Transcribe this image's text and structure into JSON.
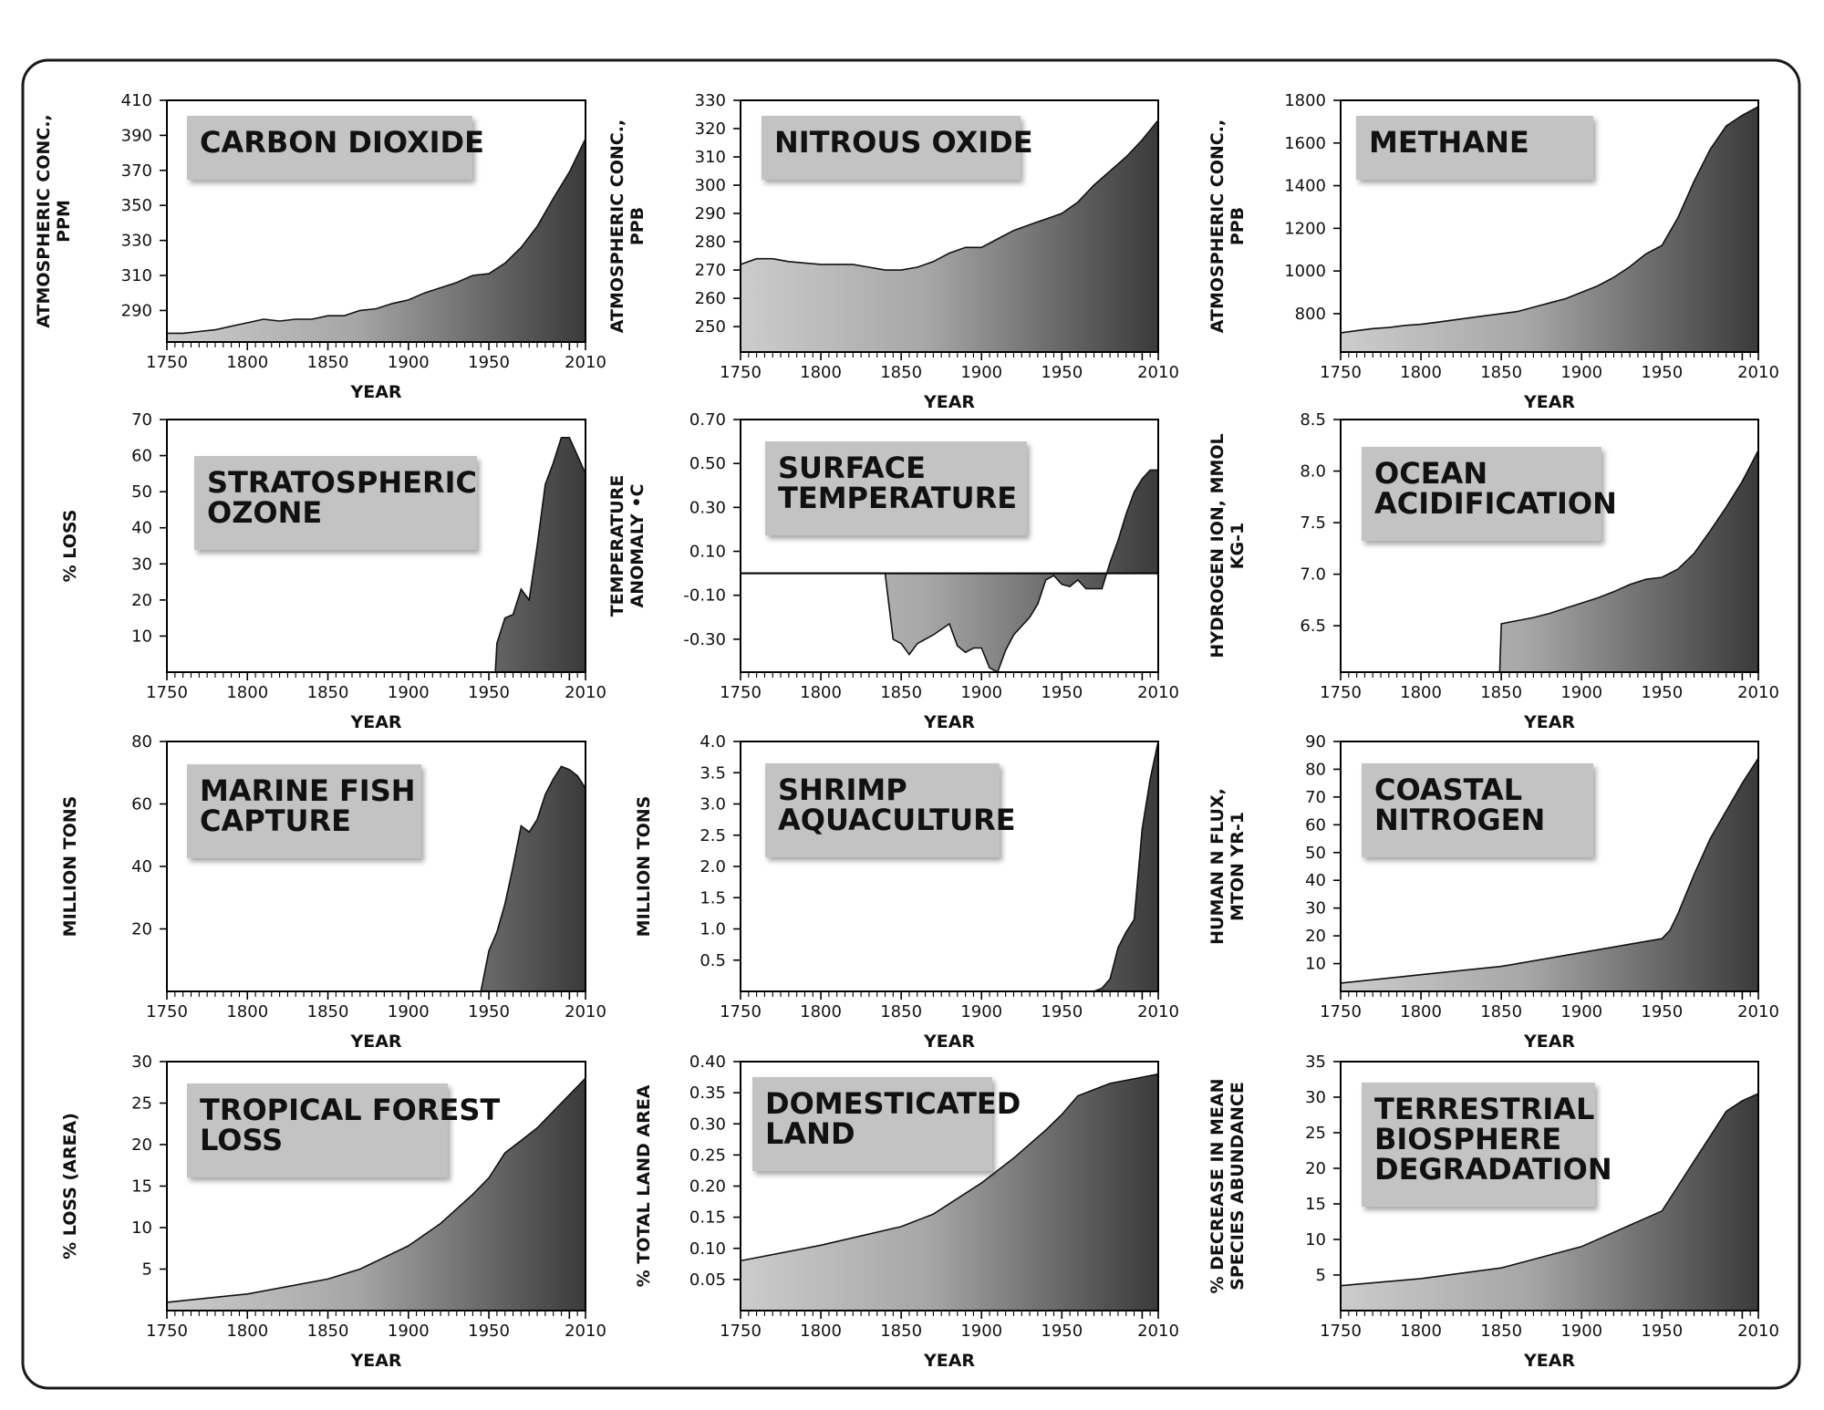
{
  "chart_data": [
    {
      "type": "area",
      "title_lines": [
        "CARBON DIOXIDE"
      ],
      "ylabel_lines": [
        "ATMOSPHERIC CONC.,",
        "PPM"
      ],
      "xlabel": "YEAR",
      "xlim": [
        1750,
        2010
      ],
      "ylim": [
        272,
        410
      ],
      "yticks": [
        290,
        310,
        330,
        350,
        370,
        390,
        410
      ],
      "xticks": [
        1750,
        1800,
        1850,
        1900,
        1950,
        2010
      ],
      "x": [
        1750,
        1760,
        1770,
        1780,
        1790,
        1800,
        1810,
        1820,
        1830,
        1840,
        1850,
        1860,
        1870,
        1880,
        1890,
        1900,
        1910,
        1920,
        1930,
        1940,
        1950,
        1960,
        1970,
        1980,
        1990,
        2000,
        2010
      ],
      "y": [
        277,
        277,
        278,
        279,
        281,
        283,
        285,
        284,
        285,
        285,
        287,
        287,
        290,
        291,
        294,
        296,
        300,
        303,
        306,
        310,
        311,
        317,
        326,
        338,
        354,
        369,
        388
      ]
    },
    {
      "type": "area",
      "title_lines": [
        "NITROUS OXIDE"
      ],
      "ylabel_lines": [
        "ATMOSPHERIC CONC.,",
        "PPB"
      ],
      "xlabel": "YEAR",
      "xlim": [
        1750,
        2010
      ],
      "ylim": [
        241,
        330
      ],
      "yticks": [
        250,
        260,
        270,
        280,
        290,
        300,
        310,
        320,
        330
      ],
      "xticks": [
        1750,
        1800,
        1850,
        1900,
        1950,
        2010
      ],
      "x": [
        1750,
        1760,
        1770,
        1780,
        1800,
        1820,
        1830,
        1840,
        1850,
        1860,
        1870,
        1880,
        1890,
        1900,
        1910,
        1920,
        1930,
        1940,
        1950,
        1960,
        1970,
        1980,
        1990,
        2000,
        2010
      ],
      "y": [
        272,
        274,
        274,
        273,
        272,
        272,
        271,
        270,
        270,
        271,
        273,
        276,
        278,
        278,
        281,
        284,
        286,
        288,
        290,
        294,
        300,
        305,
        310,
        316,
        323
      ]
    },
    {
      "type": "area",
      "title_lines": [
        "METHANE"
      ],
      "ylabel_lines": [
        "ATMOSPHERIC CONC.,",
        "PPB"
      ],
      "xlabel": "YEAR",
      "xlim": [
        1750,
        2010
      ],
      "ylim": [
        620,
        1800
      ],
      "yticks": [
        800,
        1000,
        1200,
        1400,
        1600,
        1800
      ],
      "xticks": [
        1750,
        1800,
        1850,
        1900,
        1950,
        2010
      ],
      "x": [
        1750,
        1760,
        1770,
        1780,
        1790,
        1800,
        1810,
        1820,
        1830,
        1840,
        1850,
        1860,
        1870,
        1880,
        1890,
        1900,
        1910,
        1920,
        1930,
        1940,
        1950,
        1960,
        1970,
        1980,
        1990,
        2000,
        2010
      ],
      "y": [
        710,
        720,
        730,
        735,
        745,
        750,
        760,
        770,
        780,
        790,
        800,
        810,
        830,
        850,
        870,
        900,
        930,
        970,
        1020,
        1080,
        1120,
        1250,
        1420,
        1570,
        1680,
        1730,
        1770
      ]
    },
    {
      "type": "area",
      "title_lines": [
        "STRATOSPHERIC",
        "OZONE"
      ],
      "ylabel_lines": [
        "% LOSS"
      ],
      "xlabel": "YEAR",
      "xlim": [
        1750,
        2010
      ],
      "ylim": [
        0,
        70
      ],
      "yticks": [
        10,
        20,
        30,
        40,
        50,
        60,
        70
      ],
      "xticks": [
        1750,
        1800,
        1850,
        1900,
        1950,
        2010
      ],
      "x": [
        1750,
        1954,
        1955,
        1960,
        1965,
        1970,
        1975,
        1980,
        1985,
        1990,
        1995,
        2000,
        2005,
        2010
      ],
      "y": [
        0,
        0,
        8,
        15,
        16,
        23,
        20,
        35,
        52,
        58,
        65,
        65,
        60,
        55
      ]
    },
    {
      "type": "area",
      "title_lines": [
        "SURFACE",
        "TEMPERATURE"
      ],
      "ylabel_lines": [
        "TEMPERATURE",
        "ANOMALY •C"
      ],
      "xlabel": "YEAR",
      "xlim": [
        1750,
        2010
      ],
      "ylim": [
        -0.45,
        0.7
      ],
      "yticks": [
        -0.3,
        -0.1,
        0.1,
        0.3,
        0.5,
        0.7
      ],
      "ytick_labels": [
        "-0.30",
        "-0.10",
        "0.10",
        "0.30",
        "0.50",
        "0.70"
      ],
      "xticks": [
        1750,
        1800,
        1850,
        1900,
        1950,
        2010
      ],
      "baseline": 0,
      "x": [
        1750,
        1840,
        1845,
        1850,
        1855,
        1860,
        1870,
        1880,
        1885,
        1890,
        1895,
        1900,
        1905,
        1910,
        1915,
        1920,
        1930,
        1935,
        1940,
        1945,
        1950,
        1955,
        1960,
        1965,
        1970,
        1975,
        1980,
        1985,
        1990,
        1995,
        2000,
        2005,
        2010
      ],
      "y": [
        0,
        0,
        -0.3,
        -0.32,
        -0.37,
        -0.32,
        -0.28,
        -0.23,
        -0.33,
        -0.36,
        -0.34,
        -0.34,
        -0.43,
        -0.45,
        -0.35,
        -0.28,
        -0.2,
        -0.14,
        -0.03,
        -0.01,
        -0.05,
        -0.06,
        -0.03,
        -0.07,
        -0.07,
        -0.07,
        0.05,
        0.15,
        0.27,
        0.37,
        0.43,
        0.47,
        0.47
      ]
    },
    {
      "type": "area",
      "title_lines": [
        "OCEAN",
        "ACIDIFICATION"
      ],
      "ylabel_lines": [
        "HYDROGEN ION, MMOL",
        "KG-1"
      ],
      "xlabel": "YEAR",
      "xlim": [
        1750,
        2010
      ],
      "ylim": [
        6.05,
        8.5
      ],
      "yticks": [
        6.5,
        7.0,
        7.5,
        8.0,
        8.5
      ],
      "ytick_labels": [
        "6.5",
        "7.0",
        "7.5",
        "8.0",
        "8.5"
      ],
      "xticks": [
        1750,
        1800,
        1850,
        1900,
        1950,
        2010
      ],
      "x": [
        1750,
        1849,
        1850,
        1860,
        1870,
        1880,
        1890,
        1900,
        1910,
        1920,
        1930,
        1940,
        1950,
        1960,
        1970,
        1980,
        1990,
        2000,
        2010
      ],
      "y": [
        6.05,
        6.05,
        6.52,
        6.55,
        6.58,
        6.62,
        6.67,
        6.72,
        6.77,
        6.83,
        6.9,
        6.95,
        6.97,
        7.05,
        7.2,
        7.42,
        7.65,
        7.9,
        8.2
      ]
    },
    {
      "type": "area",
      "title_lines": [
        "MARINE FISH",
        "CAPTURE"
      ],
      "ylabel_lines": [
        "MILLION TONS"
      ],
      "xlabel": "YEAR",
      "xlim": [
        1750,
        2010
      ],
      "ylim": [
        0,
        80
      ],
      "yticks": [
        20,
        40,
        60,
        80
      ],
      "xticks": [
        1750,
        1800,
        1850,
        1900,
        1950,
        2010
      ],
      "x": [
        1750,
        1944,
        1945,
        1950,
        1955,
        1960,
        1965,
        1970,
        1975,
        1980,
        1985,
        1990,
        1995,
        2000,
        2005,
        2010
      ],
      "y": [
        0,
        0,
        0,
        13,
        19,
        28,
        40,
        53,
        51,
        55,
        63,
        68,
        72,
        71,
        69,
        65
      ]
    },
    {
      "type": "area",
      "title_lines": [
        "SHRIMP",
        "AQUACULTURE"
      ],
      "ylabel_lines": [
        "MILLION TONS"
      ],
      "xlabel": "YEAR",
      "xlim": [
        1750,
        2010
      ],
      "ylim": [
        0,
        4.0
      ],
      "yticks": [
        0.5,
        1.0,
        1.5,
        2.0,
        2.5,
        3.0,
        3.5,
        4.0
      ],
      "ytick_labels": [
        "0.5",
        "1.0",
        "1.5",
        "2.0",
        "2.5",
        "3.0",
        "3.5",
        "4.0"
      ],
      "xticks": [
        1750,
        1800,
        1850,
        1900,
        1950,
        2010
      ],
      "x": [
        1750,
        1970,
        1975,
        1980,
        1985,
        1990,
        1995,
        2000,
        2005,
        2010
      ],
      "y": [
        0,
        0,
        0.05,
        0.2,
        0.7,
        0.95,
        1.15,
        2.6,
        3.4,
        4.0
      ]
    },
    {
      "type": "area",
      "title_lines": [
        "COASTAL",
        "NITROGEN"
      ],
      "ylabel_lines": [
        "HUMAN N FLUX,",
        "MTON YR-1"
      ],
      "xlabel": "YEAR",
      "xlim": [
        1750,
        2010
      ],
      "ylim": [
        0,
        90
      ],
      "yticks": [
        10,
        20,
        30,
        40,
        50,
        60,
        70,
        80,
        90
      ],
      "xticks": [
        1750,
        1800,
        1850,
        1900,
        1950,
        2010
      ],
      "x": [
        1750,
        1800,
        1850,
        1900,
        1950,
        1955,
        1960,
        1970,
        1980,
        1990,
        2000,
        2010
      ],
      "y": [
        3,
        6,
        9,
        14,
        19,
        22,
        28,
        42,
        55,
        65,
        75,
        84
      ]
    },
    {
      "type": "area",
      "title_lines": [
        "TROPICAL FOREST",
        "LOSS"
      ],
      "ylabel_lines": [
        "% LOSS (AREA)"
      ],
      "xlabel": "YEAR",
      "xlim": [
        1750,
        2010
      ],
      "ylim": [
        0,
        30
      ],
      "yticks": [
        5,
        10,
        15,
        20,
        25,
        30
      ],
      "xticks": [
        1750,
        1800,
        1850,
        1900,
        1950,
        2010
      ],
      "x": [
        1750,
        1800,
        1850,
        1870,
        1900,
        1920,
        1940,
        1950,
        1960,
        1970,
        1980,
        1990,
        2000,
        2010
      ],
      "y": [
        1,
        2,
        3.8,
        5,
        7.8,
        10.5,
        14,
        16,
        19,
        20.5,
        22,
        24,
        26,
        28
      ]
    },
    {
      "type": "area",
      "title_lines": [
        "DOMESTICATED",
        "LAND"
      ],
      "ylabel_lines": [
        "% TOTAL LAND AREA"
      ],
      "xlabel": "YEAR",
      "xlim": [
        1750,
        2010
      ],
      "ylim": [
        0,
        0.4
      ],
      "yticks": [
        0.05,
        0.1,
        0.15,
        0.2,
        0.25,
        0.3,
        0.35,
        0.4
      ],
      "ytick_labels": [
        "0.05",
        "0.10",
        "0.15",
        "0.20",
        "0.25",
        "0.30",
        "0.35",
        "0.40"
      ],
      "xticks": [
        1750,
        1800,
        1850,
        1900,
        1950,
        2010
      ],
      "x": [
        1750,
        1800,
        1850,
        1870,
        1900,
        1920,
        1940,
        1950,
        1960,
        1970,
        1980,
        1990,
        2000,
        2010
      ],
      "y": [
        0.08,
        0.105,
        0.135,
        0.155,
        0.205,
        0.245,
        0.29,
        0.315,
        0.345,
        0.355,
        0.365,
        0.37,
        0.375,
        0.38
      ]
    },
    {
      "type": "area",
      "title_lines": [
        "TERRESTRIAL",
        "BIOSPHERE",
        "DEGRADATION"
      ],
      "ylabel_lines": [
        "% DECREASE IN MEAN",
        "SPECIES ABUNDANCE"
      ],
      "xlabel": "YEAR",
      "xlim": [
        1750,
        2010
      ],
      "ylim": [
        0,
        35
      ],
      "yticks": [
        5,
        10,
        15,
        20,
        25,
        30,
        35
      ],
      "xticks": [
        1750,
        1800,
        1850,
        1900,
        1950,
        2010
      ],
      "x": [
        1750,
        1800,
        1850,
        1900,
        1950,
        1960,
        1970,
        1980,
        1990,
        2000,
        2010
      ],
      "y": [
        3.5,
        4.5,
        6,
        9,
        14,
        17.5,
        21,
        24.5,
        28,
        29.5,
        30.5
      ]
    }
  ]
}
